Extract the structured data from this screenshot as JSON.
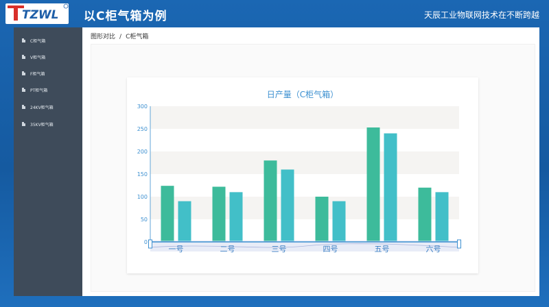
{
  "header": {
    "logo_text": "TZWL",
    "title": "以C柜气箱为例",
    "slogan": "天辰工业物联网技术在不断跨越"
  },
  "sidebar": {
    "items": [
      {
        "label": "C柜气箱",
        "icon": "document-icon"
      },
      {
        "label": "V柜气箱",
        "icon": "document-icon"
      },
      {
        "label": "F柜气箱",
        "icon": "document-icon"
      },
      {
        "label": "PT柜气箱",
        "icon": "document-icon"
      },
      {
        "label": "24KV柜气箱",
        "icon": "document-icon"
      },
      {
        "label": "35KV柜气箱",
        "icon": "document-icon"
      }
    ]
  },
  "breadcrumb": {
    "root": "图形对比",
    "separator": "/",
    "current": "C柜气箱"
  },
  "colors": {
    "header_blue": "#1b67b3",
    "sidebar_bg": "#3e4b5a",
    "series_1": "#3dbb9b",
    "series_2": "#42bfc8",
    "title_blue": "#3b8fd0"
  },
  "chart_data": {
    "type": "bar",
    "title": "日产量（C柜气箱）",
    "categories": [
      "一号",
      "二号",
      "三号",
      "四号",
      "五号",
      "六号"
    ],
    "series": [
      {
        "values": [
          124,
          122,
          180,
          100,
          253,
          120
        ]
      },
      {
        "values": [
          90,
          110,
          160,
          90,
          240,
          110
        ]
      }
    ],
    "yticks": [
      0,
      50,
      100,
      150,
      200,
      250,
      300
    ],
    "ylim": [
      0,
      300
    ],
    "grid": "alternating bands",
    "legend": "none",
    "datazoom_slider": true
  }
}
